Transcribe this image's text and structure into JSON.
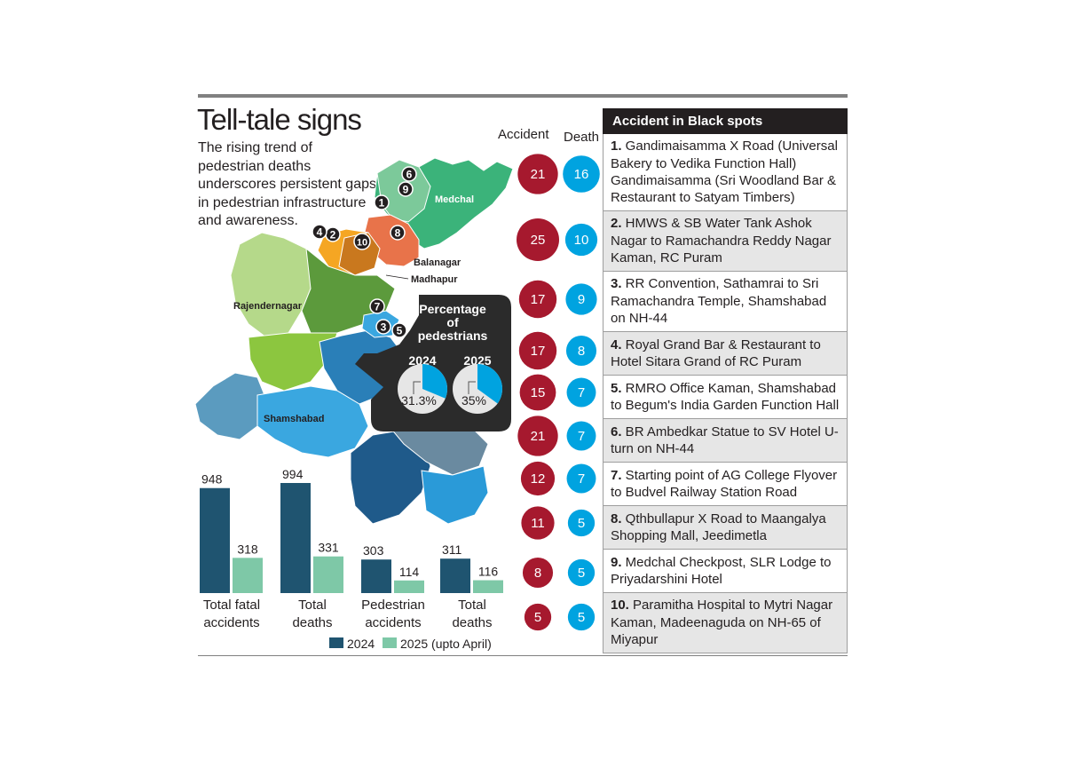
{
  "title": "Tell-tale signs",
  "subtitle": "The rising trend of pedestrian deaths underscores persistent gaps in pedestrian infrastructure and awareness.",
  "columns": {
    "accident": "Accident",
    "death": "Death"
  },
  "colors": {
    "accident_circle": "#a6192e",
    "death_circle": "#00a3e0",
    "bar_2024": "#1f5470",
    "bar_2025": "#7ec8a7"
  },
  "map": {
    "labels": {
      "medchal": "Medchal",
      "balanagar": "Balanagar",
      "madhapur": "Madhapur",
      "rajendernagar": "Rajendernagar",
      "shamshabad": "Shamshabad"
    },
    "markers": [
      "1",
      "2",
      "3",
      "4",
      "5",
      "6",
      "7",
      "8",
      "9",
      "10"
    ]
  },
  "pedestrian_inset": {
    "title": "Percentage of pedestrians",
    "years": [
      "2024",
      "2025"
    ],
    "values_label": [
      "31.3%",
      "35%"
    ]
  },
  "table": {
    "heading": "Accident in Black spots",
    "rows": [
      {
        "num": "1.",
        "text": "Gandimaisamma X Road (Universal Bakery to Vedika Function Hall) Gandimaisamma (Sri Woodland Bar & Restaurant to Satyam Timbers)"
      },
      {
        "num": "2.",
        "text": "HMWS & SB Water Tank Ashok Nagar to Ramachandra Reddy Nagar Kaman, RC Puram"
      },
      {
        "num": "3.",
        "text": "RR Convention, Sathamrai to Sri Ramachandra Temple, Shamshabad on NH-44"
      },
      {
        "num": "4.",
        "text": "Royal Grand Bar & Restaurant to Hotel Sitara Grand of RC Puram"
      },
      {
        "num": "5.",
        "text": "RMRO Office Kaman, Shamshabad to Begum's India Garden Function Hall"
      },
      {
        "num": "6.",
        "text": "BR Ambedkar Statue to SV Hotel U-turn on NH-44"
      },
      {
        "num": "7.",
        "text": "Starting point of AG College Flyover to Budvel Railway Station Road"
      },
      {
        "num": "8.",
        "text": "Qthbullapur X Road to Maangalya Shopping Mall, Jeedimetla"
      },
      {
        "num": "9.",
        "text": "Medchal Checkpost, SLR Lodge to Priyadarshini Hotel"
      },
      {
        "num": "10.",
        "text": "Paramitha Hospital to Mytri Nagar Kaman, Madeenaguda on NH-65 of Miyapur"
      }
    ]
  },
  "chart_data": [
    {
      "type": "bar",
      "categories": [
        "Total fatal accidents",
        "Total deaths",
        "Pedestrian accidents",
        "Total deaths"
      ],
      "series": [
        {
          "name": "2024",
          "values": [
            948,
            994,
            303,
            311
          ]
        },
        {
          "name": "2025 (upto April)",
          "values": [
            318,
            331,
            114,
            116
          ]
        }
      ],
      "legend": {
        "labels": [
          "2024",
          "2025 (upto April)"
        ],
        "placement": "bottom"
      },
      "ylim": [
        0,
        994
      ]
    },
    {
      "type": "pie",
      "title": "Percentage of pedestrians",
      "categories": [
        "2024",
        "2025"
      ],
      "values": [
        31.3,
        35
      ]
    },
    {
      "type": "table",
      "columns": [
        "Accident",
        "Death"
      ],
      "rows": [
        {
          "spot": "1",
          "accident": 21,
          "death": 16
        },
        {
          "spot": "2",
          "accident": 25,
          "death": 10
        },
        {
          "spot": "3",
          "accident": 17,
          "death": 9
        },
        {
          "spot": "4",
          "accident": 17,
          "death": 8
        },
        {
          "spot": "5",
          "accident": 15,
          "death": 7
        },
        {
          "spot": "6",
          "accident": 21,
          "death": 7
        },
        {
          "spot": "7",
          "accident": 12,
          "death": 7
        },
        {
          "spot": "8",
          "accident": 11,
          "death": 5
        },
        {
          "spot": "9",
          "accident": 8,
          "death": 5
        },
        {
          "spot": "10",
          "accident": 5,
          "death": 5
        }
      ]
    }
  ]
}
